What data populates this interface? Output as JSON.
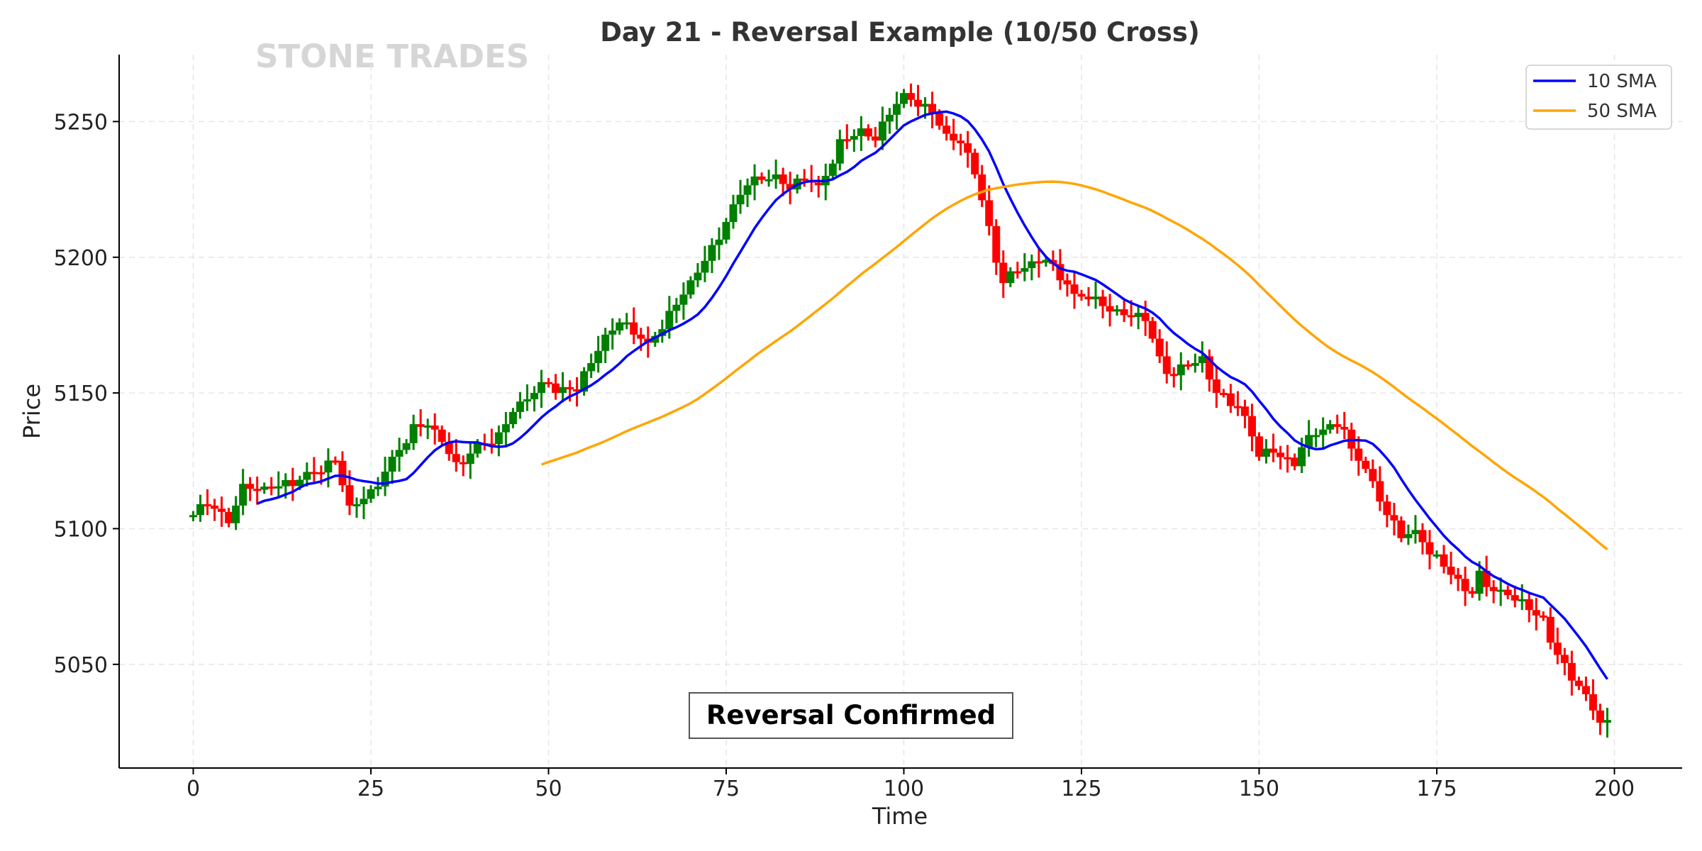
{
  "chart_data": {
    "type": "candlestick",
    "title": "Day 21 - Reversal Example (10/50 Cross)",
    "xlabel": "Time",
    "ylabel": "Price",
    "watermark": "STONE TRADES",
    "annotation": "Reversal Confirmed",
    "xlim": [
      -10,
      210
    ],
    "ylim": [
      5012,
      5275
    ],
    "x_ticks": [
      0,
      25,
      50,
      75,
      100,
      125,
      150,
      175,
      200
    ],
    "y_ticks": [
      5050,
      5100,
      5150,
      5200,
      5250
    ],
    "grid": true,
    "legend_position": "top-right",
    "colors": {
      "up": "#008000",
      "down": "#ff0000",
      "sma10": "#0000ff",
      "sma50": "#ffa500"
    },
    "series": [
      {
        "name": "10 SMA",
        "window": 10
      },
      {
        "name": "50 SMA",
        "window": 50
      }
    ],
    "close_keypoints": [
      [
        0,
        5105
      ],
      [
        2,
        5110
      ],
      [
        5,
        5102
      ],
      [
        6,
        5110
      ],
      [
        7,
        5115
      ],
      [
        10,
        5114
      ],
      [
        15,
        5118
      ],
      [
        20,
        5125
      ],
      [
        21,
        5116
      ],
      [
        22,
        5107
      ],
      [
        25,
        5113
      ],
      [
        28,
        5125
      ],
      [
        31,
        5137
      ],
      [
        33,
        5138
      ],
      [
        35,
        5132
      ],
      [
        37,
        5123
      ],
      [
        40,
        5130
      ],
      [
        43,
        5134
      ],
      [
        45,
        5143
      ],
      [
        48,
        5150
      ],
      [
        50,
        5155
      ],
      [
        51,
        5150
      ],
      [
        54,
        5152
      ],
      [
        58,
        5170
      ],
      [
        60,
        5176
      ],
      [
        62,
        5173
      ],
      [
        64,
        5167
      ],
      [
        66,
        5175
      ],
      [
        70,
        5190
      ],
      [
        73,
        5203
      ],
      [
        76,
        5218
      ],
      [
        78,
        5228
      ],
      [
        82,
        5229
      ],
      [
        84,
        5225
      ],
      [
        86,
        5230
      ],
      [
        88,
        5225
      ],
      [
        89,
        5230
      ],
      [
        91,
        5242
      ],
      [
        94,
        5246
      ],
      [
        96,
        5243
      ],
      [
        98,
        5254
      ],
      [
        100,
        5259
      ],
      [
        102,
        5257
      ],
      [
        104,
        5253
      ],
      [
        106,
        5244
      ],
      [
        108,
        5242
      ],
      [
        110,
        5232
      ],
      [
        112,
        5210
      ],
      [
        113,
        5198
      ],
      [
        114,
        5192
      ],
      [
        117,
        5196
      ],
      [
        120,
        5199
      ],
      [
        123,
        5190
      ],
      [
        124,
        5185
      ],
      [
        126,
        5186
      ],
      [
        129,
        5180
      ],
      [
        132,
        5178
      ],
      [
        134,
        5178
      ],
      [
        136,
        5162
      ],
      [
        137,
        5157
      ],
      [
        140,
        5160
      ],
      [
        142,
        5162
      ],
      [
        143,
        5155
      ],
      [
        144,
        5150
      ],
      [
        147,
        5145
      ],
      [
        148,
        5140
      ],
      [
        150,
        5128
      ],
      [
        152,
        5128
      ],
      [
        155,
        5123
      ],
      [
        156,
        5130
      ],
      [
        158,
        5136
      ],
      [
        160,
        5137
      ],
      [
        162,
        5138
      ],
      [
        163,
        5128
      ],
      [
        165,
        5122
      ],
      [
        167,
        5110
      ],
      [
        168,
        5105
      ],
      [
        170,
        5098
      ],
      [
        172,
        5098
      ],
      [
        174,
        5092
      ],
      [
        177,
        5083
      ],
      [
        179,
        5077
      ],
      [
        180,
        5076
      ],
      [
        181,
        5083
      ],
      [
        183,
        5077
      ],
      [
        184,
        5076
      ],
      [
        186,
        5075
      ],
      [
        188,
        5070
      ],
      [
        190,
        5066
      ],
      [
        191,
        5058
      ],
      [
        193,
        5049
      ],
      [
        195,
        5042
      ],
      [
        197,
        5033
      ],
      [
        198,
        5030
      ],
      [
        199,
        5028
      ]
    ]
  }
}
